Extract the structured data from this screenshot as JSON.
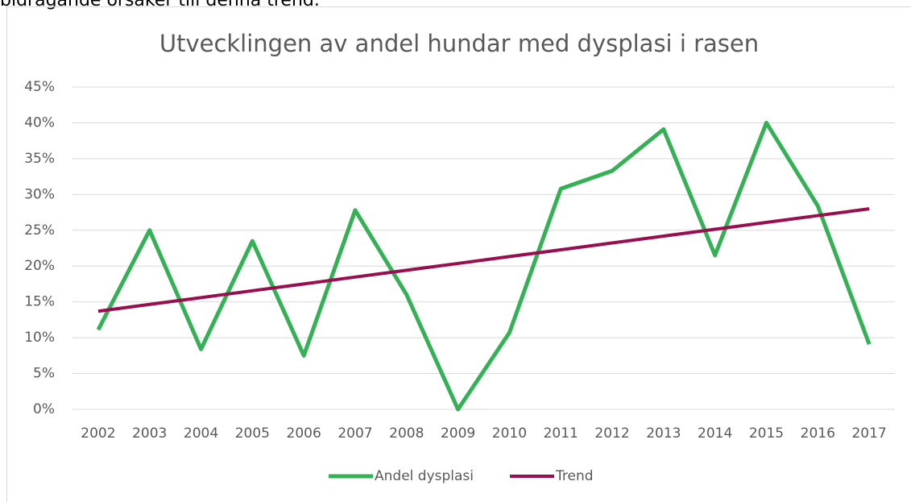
{
  "header_text": "bidragande orsaker till denna trend.",
  "chart_data": {
    "type": "line",
    "title": "Utvecklingen av andel hundar med dysplasi i rasen",
    "categories": [
      "2002",
      "2003",
      "2004",
      "2005",
      "2006",
      "2007",
      "2008",
      "2009",
      "2010",
      "2011",
      "2012",
      "2013",
      "2014",
      "2015",
      "2016",
      "2017"
    ],
    "series": [
      {
        "name": "Andel dysplasi",
        "color": "#35b155",
        "width": 5,
        "values": [
          11.1,
          25,
          8.4,
          23.5,
          7.5,
          27.8,
          16,
          0,
          10.7,
          30.8,
          33.3,
          39.1,
          21.5,
          40,
          28.4,
          9.1
        ]
      },
      {
        "name": "Trend",
        "color": "#9a0d4e",
        "width": 4,
        "values": [
          13.7,
          14.65,
          15.6,
          16.56,
          17.51,
          18.47,
          19.42,
          20.37,
          21.33,
          22.28,
          23.23,
          24.19,
          25.14,
          26.1,
          27.05,
          28.0
        ]
      }
    ],
    "ylim": [
      0,
      45
    ],
    "yticks": [
      {
        "value": 0,
        "label": "0%"
      },
      {
        "value": 5,
        "label": "5%"
      },
      {
        "value": 10,
        "label": "10%"
      },
      {
        "value": 15,
        "label": "15%"
      },
      {
        "value": 20,
        "label": "20%"
      },
      {
        "value": 25,
        "label": "25%"
      },
      {
        "value": 30,
        "label": "30%"
      },
      {
        "value": 35,
        "label": "35%"
      },
      {
        "value": 40,
        "label": "40%"
      },
      {
        "value": 45,
        "label": "45%"
      }
    ],
    "grid": true,
    "legend": "bottom"
  }
}
